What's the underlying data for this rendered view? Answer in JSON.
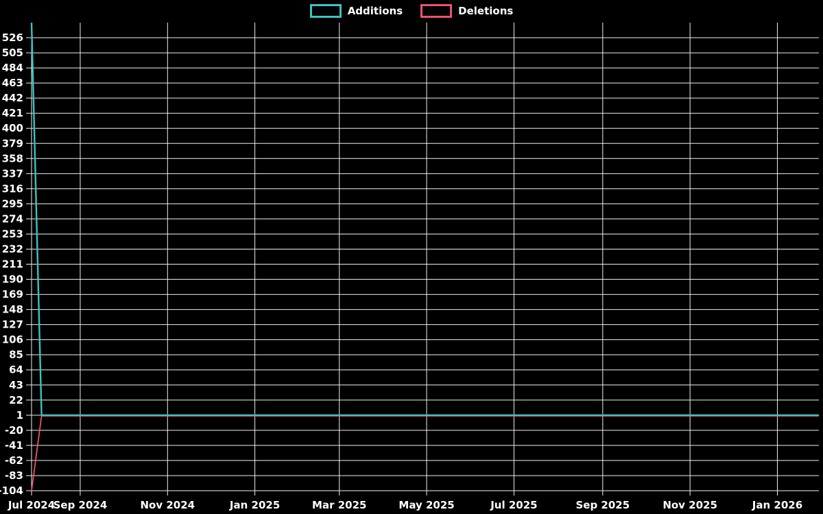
{
  "page": {
    "background_color": "#000000",
    "text_color": "#ffffff",
    "gridline_color": "#f0f0f0"
  },
  "chart_data": {
    "type": "line",
    "title": "",
    "legend": {
      "position": "top-center",
      "entries": [
        "Additions",
        "Deletions"
      ]
    },
    "x_domain": [
      "2024-07-29",
      "2026-01-30"
    ],
    "ylim": [
      -104,
      547
    ],
    "y_tick_step": 21,
    "grid": true,
    "y_ticks": [
      526,
      505,
      484,
      463,
      442,
      421,
      400,
      379,
      358,
      337,
      316,
      295,
      274,
      253,
      232,
      211,
      190,
      169,
      148,
      127,
      106,
      85,
      64,
      43,
      22,
      1,
      -20,
      -41,
      -62,
      -83,
      -104
    ],
    "x_ticks": [
      {
        "label": "Jul 2024",
        "date": "2024-07-29"
      },
      {
        "label": "Sep 2024",
        "date": "2024-09-01"
      },
      {
        "label": "Nov 2024",
        "date": "2024-11-01"
      },
      {
        "label": "Jan 2025",
        "date": "2025-01-01"
      },
      {
        "label": "Mar 2025",
        "date": "2025-03-01"
      },
      {
        "label": "May 2025",
        "date": "2025-05-01"
      },
      {
        "label": "Jul 2025",
        "date": "2025-07-01"
      },
      {
        "label": "Sep 2025",
        "date": "2025-09-01"
      },
      {
        "label": "Nov 2025",
        "date": "2025-11-01"
      },
      {
        "label": "Jan 2026",
        "date": "2026-01-01"
      }
    ],
    "series": [
      {
        "name": "Additions",
        "color": "#3cc3c3",
        "points": [
          {
            "date": "2024-07-29",
            "value": 547
          },
          {
            "date": "2024-08-05",
            "value": 1
          },
          {
            "date": "2026-01-30",
            "value": 1
          }
        ]
      },
      {
        "name": "Deletions",
        "color": "#ee5170",
        "points": [
          {
            "date": "2024-07-29",
            "value": -104
          },
          {
            "date": "2024-08-05",
            "value": 0
          },
          {
            "date": "2026-01-30",
            "value": 0
          }
        ]
      }
    ]
  }
}
